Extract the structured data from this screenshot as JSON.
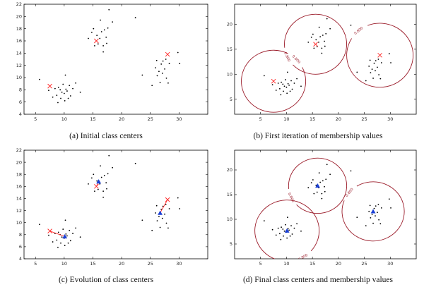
{
  "figure": {
    "colors": {
      "points": "#000000",
      "initial_center": "#ff3030",
      "final_center": "#1a3fd6",
      "membership_contour": "#9b1c2a",
      "axis": "#000000"
    }
  },
  "chart_data": [
    {
      "id": "a",
      "type": "scatter",
      "caption": "(a) Initial class centers",
      "xlim": [
        3,
        35
      ],
      "ylim": [
        4,
        22
      ],
      "xticks": [
        5,
        10,
        15,
        20,
        25,
        30
      ],
      "yticks": [
        4,
        6,
        8,
        10,
        12,
        14,
        16,
        18,
        20,
        22
      ],
      "points": [
        [
          5.7,
          9.7
        ],
        [
          7.3,
          7.9
        ],
        [
          8.0,
          6.8
        ],
        [
          8.4,
          8.2
        ],
        [
          8.7,
          7.1
        ],
        [
          9.0,
          8.4
        ],
        [
          9.3,
          8.0
        ],
        [
          9.4,
          6.6
        ],
        [
          9.6,
          7.6
        ],
        [
          9.8,
          8.9
        ],
        [
          10.0,
          7.4
        ],
        [
          10.1,
          6.2
        ],
        [
          10.3,
          8.1
        ],
        [
          10.5,
          7.8
        ],
        [
          10.7,
          6.6
        ],
        [
          10.9,
          8.7
        ],
        [
          11.1,
          7.0
        ],
        [
          11.5,
          8.2
        ],
        [
          12.0,
          9.1
        ],
        [
          8.9,
          5.9
        ],
        [
          12.8,
          7.6
        ],
        [
          10.2,
          10.4
        ],
        [
          14.2,
          16.4
        ],
        [
          14.8,
          17.4
        ],
        [
          15.3,
          15.2
        ],
        [
          15.7,
          16.9
        ],
        [
          15.9,
          15.5
        ],
        [
          16.2,
          16.4
        ],
        [
          16.5,
          17.5
        ],
        [
          16.8,
          15.2
        ],
        [
          17.0,
          17.8
        ],
        [
          17.3,
          16.6
        ],
        [
          17.4,
          15.6
        ],
        [
          17.6,
          18.1
        ],
        [
          16.3,
          19.4
        ],
        [
          16.8,
          14.2
        ],
        [
          17.8,
          21.1
        ],
        [
          18.4,
          19.1
        ],
        [
          15.1,
          18.0
        ],
        [
          22.4,
          19.8
        ],
        [
          23.6,
          10.4
        ],
        [
          25.3,
          8.7
        ],
        [
          25.9,
          11.6
        ],
        [
          26.1,
          12.8
        ],
        [
          26.2,
          10.3
        ],
        [
          26.5,
          11.0
        ],
        [
          26.7,
          9.2
        ],
        [
          26.9,
          12.2
        ],
        [
          27.1,
          10.7
        ],
        [
          27.2,
          12.7
        ],
        [
          27.5,
          11.4
        ],
        [
          27.7,
          13.0
        ],
        [
          27.8,
          9.9
        ],
        [
          28.3,
          12.3
        ],
        [
          28.1,
          9.1
        ],
        [
          30.1,
          12.3
        ],
        [
          29.8,
          14.1
        ]
      ],
      "centers": [
        [
          7.5,
          8.6
        ],
        [
          15.6,
          16.0
        ],
        [
          28.0,
          13.8
        ]
      ]
    },
    {
      "id": "b",
      "type": "scatter",
      "caption": "(b) First iteration of membership values",
      "xlim": [
        0,
        35
      ],
      "ylim": [
        2,
        24
      ],
      "xticks": [
        5,
        10,
        15,
        20,
        25,
        30
      ],
      "yticks": [
        5,
        10,
        15,
        20
      ],
      "points": [
        [
          5.7,
          9.7
        ],
        [
          7.3,
          7.9
        ],
        [
          8.0,
          6.8
        ],
        [
          8.4,
          8.2
        ],
        [
          8.7,
          7.1
        ],
        [
          9.0,
          8.4
        ],
        [
          9.3,
          8.0
        ],
        [
          9.4,
          6.6
        ],
        [
          9.6,
          7.6
        ],
        [
          9.8,
          8.9
        ],
        [
          10.0,
          7.4
        ],
        [
          10.1,
          6.2
        ],
        [
          10.3,
          8.1
        ],
        [
          10.5,
          7.8
        ],
        [
          10.7,
          6.6
        ],
        [
          10.9,
          8.7
        ],
        [
          11.1,
          7.0
        ],
        [
          11.5,
          8.2
        ],
        [
          12.0,
          9.1
        ],
        [
          8.9,
          5.9
        ],
        [
          12.8,
          7.6
        ],
        [
          10.2,
          10.4
        ],
        [
          14.2,
          16.4
        ],
        [
          14.8,
          17.4
        ],
        [
          15.3,
          15.2
        ],
        [
          15.7,
          16.9
        ],
        [
          15.9,
          15.5
        ],
        [
          16.2,
          16.4
        ],
        [
          16.5,
          17.5
        ],
        [
          16.8,
          15.2
        ],
        [
          17.0,
          17.8
        ],
        [
          17.3,
          16.6
        ],
        [
          17.4,
          15.6
        ],
        [
          17.6,
          18.1
        ],
        [
          16.3,
          19.4
        ],
        [
          16.8,
          14.2
        ],
        [
          17.8,
          21.1
        ],
        [
          18.4,
          19.1
        ],
        [
          15.1,
          18.0
        ],
        [
          22.4,
          19.8
        ],
        [
          23.6,
          10.4
        ],
        [
          25.3,
          8.7
        ],
        [
          25.9,
          11.6
        ],
        [
          26.1,
          12.8
        ],
        [
          26.2,
          10.3
        ],
        [
          26.5,
          11.0
        ],
        [
          26.7,
          9.2
        ],
        [
          26.9,
          12.2
        ],
        [
          27.1,
          10.7
        ],
        [
          27.2,
          12.7
        ],
        [
          27.5,
          11.4
        ],
        [
          27.7,
          13.0
        ],
        [
          27.8,
          9.9
        ],
        [
          28.3,
          12.3
        ],
        [
          28.1,
          9.1
        ],
        [
          30.1,
          12.3
        ],
        [
          29.8,
          14.1
        ]
      ],
      "centers": [
        [
          7.5,
          8.6
        ],
        [
          15.6,
          16.0
        ],
        [
          28.0,
          13.8
        ]
      ],
      "contours": [
        {
          "cx": 7.5,
          "cy": 8.6,
          "r": 6.2,
          "label": "0.800",
          "label_deg": 45
        },
        {
          "cx": 15.6,
          "cy": 16.0,
          "r": 6.0,
          "label": "0.800",
          "label_deg": 205
        },
        {
          "cx": 28.0,
          "cy": 13.8,
          "r": 6.4,
          "label": "0.800",
          "label_deg": 130
        }
      ]
    },
    {
      "id": "c",
      "type": "scatter",
      "caption": "(c) Evolution of class centers",
      "xlim": [
        3,
        35
      ],
      "ylim": [
        4,
        22
      ],
      "xticks": [
        5,
        10,
        15,
        20,
        25,
        30
      ],
      "yticks": [
        4,
        6,
        8,
        10,
        12,
        14,
        16,
        18,
        20,
        22
      ],
      "points": [
        [
          5.7,
          9.7
        ],
        [
          7.3,
          7.9
        ],
        [
          8.0,
          6.8
        ],
        [
          8.4,
          8.2
        ],
        [
          8.7,
          7.1
        ],
        [
          9.0,
          8.4
        ],
        [
          9.3,
          8.0
        ],
        [
          9.4,
          6.6
        ],
        [
          9.6,
          7.6
        ],
        [
          9.8,
          8.9
        ],
        [
          10.0,
          7.4
        ],
        [
          10.1,
          6.2
        ],
        [
          10.3,
          8.1
        ],
        [
          10.5,
          7.8
        ],
        [
          10.7,
          6.6
        ],
        [
          10.9,
          8.7
        ],
        [
          11.1,
          7.0
        ],
        [
          11.5,
          8.2
        ],
        [
          12.0,
          9.1
        ],
        [
          8.9,
          5.9
        ],
        [
          12.8,
          7.6
        ],
        [
          10.2,
          10.4
        ],
        [
          14.2,
          16.4
        ],
        [
          14.8,
          17.4
        ],
        [
          15.3,
          15.2
        ],
        [
          15.7,
          16.9
        ],
        [
          15.9,
          15.5
        ],
        [
          16.2,
          16.4
        ],
        [
          16.5,
          17.5
        ],
        [
          16.8,
          15.2
        ],
        [
          17.0,
          17.8
        ],
        [
          17.3,
          16.6
        ],
        [
          17.4,
          15.6
        ],
        [
          17.6,
          18.1
        ],
        [
          16.3,
          19.4
        ],
        [
          16.8,
          14.2
        ],
        [
          17.8,
          21.1
        ],
        [
          18.4,
          19.1
        ],
        [
          15.1,
          18.0
        ],
        [
          22.4,
          19.8
        ],
        [
          23.6,
          10.4
        ],
        [
          25.3,
          8.7
        ],
        [
          25.9,
          11.6
        ],
        [
          26.1,
          12.8
        ],
        [
          26.2,
          10.3
        ],
        [
          26.5,
          11.0
        ],
        [
          26.7,
          9.2
        ],
        [
          26.9,
          12.2
        ],
        [
          27.1,
          10.7
        ],
        [
          27.2,
          12.7
        ],
        [
          27.5,
          11.4
        ],
        [
          27.7,
          13.0
        ],
        [
          27.8,
          9.9
        ],
        [
          28.3,
          12.3
        ],
        [
          28.1,
          9.1
        ],
        [
          30.1,
          12.3
        ],
        [
          29.8,
          14.1
        ]
      ],
      "centers": [
        [
          7.5,
          8.6
        ],
        [
          15.6,
          16.0
        ],
        [
          28.0,
          13.8
        ]
      ],
      "final_centers": [
        [
          10.1,
          7.7
        ],
        [
          16.0,
          16.8
        ],
        [
          26.7,
          11.6
        ]
      ]
    },
    {
      "id": "d",
      "type": "scatter",
      "caption": "(d) Final class centers and membership values",
      "xlim": [
        0,
        35
      ],
      "ylim": [
        2,
        24
      ],
      "xticks": [
        5,
        10,
        15,
        20,
        25,
        30
      ],
      "yticks": [
        5,
        10,
        15,
        20
      ],
      "points": [
        [
          5.7,
          9.7
        ],
        [
          7.3,
          7.9
        ],
        [
          8.0,
          6.8
        ],
        [
          8.4,
          8.2
        ],
        [
          8.7,
          7.1
        ],
        [
          9.0,
          8.4
        ],
        [
          9.3,
          8.0
        ],
        [
          9.4,
          6.6
        ],
        [
          9.6,
          7.6
        ],
        [
          9.8,
          8.9
        ],
        [
          10.0,
          7.4
        ],
        [
          10.1,
          6.2
        ],
        [
          10.3,
          8.1
        ],
        [
          10.5,
          7.8
        ],
        [
          10.7,
          6.6
        ],
        [
          10.9,
          8.7
        ],
        [
          11.1,
          7.0
        ],
        [
          11.5,
          8.2
        ],
        [
          12.0,
          9.1
        ],
        [
          8.9,
          5.9
        ],
        [
          12.8,
          7.6
        ],
        [
          10.2,
          10.4
        ],
        [
          14.2,
          16.4
        ],
        [
          14.8,
          17.4
        ],
        [
          15.3,
          15.2
        ],
        [
          15.7,
          16.9
        ],
        [
          15.9,
          15.5
        ],
        [
          16.2,
          16.4
        ],
        [
          16.5,
          17.5
        ],
        [
          16.8,
          15.2
        ],
        [
          17.0,
          17.8
        ],
        [
          17.3,
          16.6
        ],
        [
          17.4,
          15.6
        ],
        [
          17.6,
          18.1
        ],
        [
          16.3,
          19.4
        ],
        [
          16.8,
          14.2
        ],
        [
          17.8,
          21.1
        ],
        [
          18.4,
          19.1
        ],
        [
          15.1,
          18.0
        ],
        [
          22.4,
          19.8
        ],
        [
          23.6,
          10.4
        ],
        [
          25.3,
          8.7
        ],
        [
          25.9,
          11.6
        ],
        [
          26.1,
          12.8
        ],
        [
          26.2,
          10.3
        ],
        [
          26.5,
          11.0
        ],
        [
          26.7,
          9.2
        ],
        [
          26.9,
          12.2
        ],
        [
          27.1,
          10.7
        ],
        [
          27.2,
          12.7
        ],
        [
          27.5,
          11.4
        ],
        [
          27.7,
          13.0
        ],
        [
          27.8,
          9.9
        ],
        [
          28.3,
          12.3
        ],
        [
          28.1,
          9.1
        ],
        [
          30.1,
          12.3
        ],
        [
          29.8,
          14.1
        ]
      ],
      "final_centers": [
        [
          10.1,
          7.7
        ],
        [
          16.0,
          16.8
        ],
        [
          26.7,
          11.6
        ]
      ],
      "contours": [
        {
          "cx": 10.1,
          "cy": 7.7,
          "r": 6.2,
          "label": "0.800",
          "label_deg": 300
        },
        {
          "cx": 16.0,
          "cy": 16.8,
          "r": 5.6,
          "label": "0.800",
          "label_deg": 205
        },
        {
          "cx": 26.7,
          "cy": 11.6,
          "r": 6.0,
          "label": "0.800",
          "label_deg": 140
        }
      ]
    }
  ]
}
